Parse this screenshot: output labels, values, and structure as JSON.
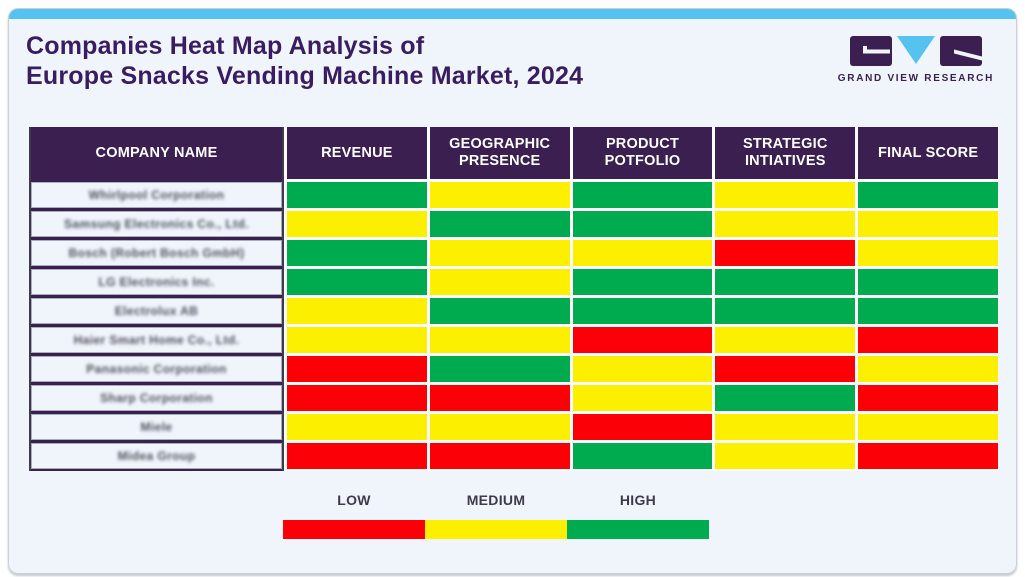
{
  "header": {
    "title_line1": "Companies Heat Map Analysis of",
    "title_line2": "Europe Snacks Vending Machine Market, 2024",
    "logo_text": "GRAND VIEW RESEARCH"
  },
  "colors": {
    "low": "#FB0007",
    "medium": "#FCF000",
    "high": "#00AB4F",
    "header_bg": "#3A1F50",
    "accent_blue": "#56C2F0",
    "title_purple": "#3A1D61",
    "card_bg": "#EFF5FA"
  },
  "table": {
    "headers": [
      "COMPANY NAME",
      "REVENUE",
      "GEOGRAPHIC PRESENCE",
      "PRODUCT POTFOLIO",
      "STRATEGIC INTIATIVES",
      "FINAL SCORE"
    ],
    "rows": [
      {
        "company": "Whirlpool Corporation",
        "cells": [
          "high",
          "medium",
          "high",
          "medium",
          "high"
        ]
      },
      {
        "company": "Samsung Electronics Co., Ltd.",
        "cells": [
          "medium",
          "high",
          "high",
          "medium",
          "medium"
        ]
      },
      {
        "company": "Bosch (Robert Bosch GmbH)",
        "cells": [
          "high",
          "medium",
          "medium",
          "low",
          "medium"
        ]
      },
      {
        "company": "LG Electronics Inc.",
        "cells": [
          "high",
          "medium",
          "high",
          "high",
          "high"
        ]
      },
      {
        "company": "Electrolux AB",
        "cells": [
          "medium",
          "high",
          "high",
          "high",
          "high"
        ]
      },
      {
        "company": "Haier Smart Home Co., Ltd.",
        "cells": [
          "medium",
          "medium",
          "low",
          "medium",
          "low"
        ]
      },
      {
        "company": "Panasonic Corporation",
        "cells": [
          "low",
          "high",
          "medium",
          "low",
          "medium"
        ]
      },
      {
        "company": "Sharp Corporation",
        "cells": [
          "low",
          "low",
          "medium",
          "high",
          "low"
        ]
      },
      {
        "company": "Miele",
        "cells": [
          "medium",
          "medium",
          "low",
          "medium",
          "medium"
        ]
      },
      {
        "company": "Midea Group",
        "cells": [
          "low",
          "low",
          "high",
          "medium",
          "low"
        ]
      }
    ]
  },
  "legend": {
    "items": [
      {
        "label": "LOW",
        "level": "low"
      },
      {
        "label": "MEDIUM",
        "level": "medium"
      },
      {
        "label": "HIGH",
        "level": "high"
      }
    ]
  },
  "chart_data": {
    "type": "heatmap",
    "title": "Companies Heat Map Analysis of Europe Snacks Vending Machine Market, 2024",
    "columns": [
      "REVENUE",
      "GEOGRAPHIC PRESENCE",
      "PRODUCT POTFOLIO",
      "STRATEGIC INTIATIVES",
      "FINAL SCORE"
    ],
    "rows": [
      "Whirlpool Corporation",
      "Samsung Electronics Co., Ltd.",
      "Bosch (Robert Bosch GmbH)",
      "LG Electronics Inc.",
      "Electrolux AB",
      "Haier Smart Home Co., Ltd.",
      "Panasonic Corporation",
      "Sharp Corporation",
      "Miele",
      "Midea Group"
    ],
    "values": [
      [
        "High",
        "Medium",
        "High",
        "Medium",
        "High"
      ],
      [
        "Medium",
        "High",
        "High",
        "Medium",
        "Medium"
      ],
      [
        "High",
        "Medium",
        "Medium",
        "Low",
        "Medium"
      ],
      [
        "High",
        "Medium",
        "High",
        "High",
        "High"
      ],
      [
        "Medium",
        "High",
        "High",
        "High",
        "High"
      ],
      [
        "Medium",
        "Medium",
        "Low",
        "Medium",
        "Low"
      ],
      [
        "Low",
        "High",
        "Medium",
        "Low",
        "Medium"
      ],
      [
        "Low",
        "Low",
        "Medium",
        "High",
        "Low"
      ],
      [
        "Medium",
        "Medium",
        "Low",
        "Medium",
        "Medium"
      ],
      [
        "Low",
        "Low",
        "High",
        "Medium",
        "Low"
      ]
    ],
    "scale": {
      "Low": "#FB0007",
      "Medium": "#FCF000",
      "High": "#00AB4F"
    },
    "legend": [
      "LOW",
      "MEDIUM",
      "HIGH"
    ],
    "legend_position": "bottom"
  }
}
